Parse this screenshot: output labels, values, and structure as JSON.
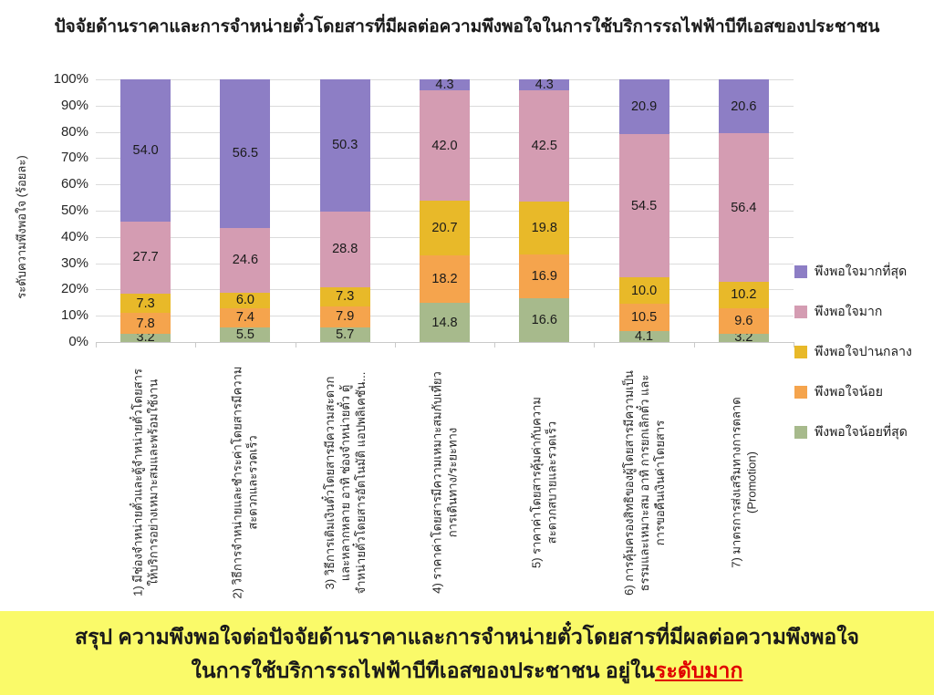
{
  "chart_data": {
    "type": "bar",
    "stacked": true,
    "orientation": "vertical",
    "grid": true,
    "legend_position": "right",
    "title": "ปัจจัยด้านราคาและการจำหน่ายตั๋วโดยสารที่มีผลต่อความพึงพอใจในการใช้บริการรถไฟฟ้าบีทีเอสของประชาชน",
    "y_axis_label": "ระดับความพึงพอใจ (ร้อยละ)",
    "ylim": [
      0,
      100
    ],
    "y_ticks": [
      "0%",
      "10%",
      "20%",
      "30%",
      "40%",
      "50%",
      "60%",
      "70%",
      "80%",
      "90%",
      "100%"
    ],
    "categories": [
      {
        "lines": [
          "1) มีช่องจำหน่ายตั๋วและตู้จำหน่ายตั๋วโดยสาร",
          "ให้บริการอย่างเหมาะสมและพร้อมใช้งาน"
        ]
      },
      {
        "lines": [
          "2) วิธีการจำหน่ายและชำระค่าโดยสารมีความ",
          "สะดวกและรวดเร็ว"
        ]
      },
      {
        "lines": [
          "3) วิธีการเติมเงินตั๋วโดยสารมีความสะดวก",
          "และหลากหลาย อาทิ ช่องจำหน่ายตั๋ว ตู้",
          "จำหน่ายตั๋วโดยสารอัตโนมัติ แอปพลิเคชัน..."
        ]
      },
      {
        "lines": [
          "4) ราคาค่าโดยสารมีความเหมาะสมกับเที่ยว",
          "การเดินทาง/ระยะทาง"
        ]
      },
      {
        "lines": [
          "5) ราคาค่าโดยสารคุ้มค่ากับความ",
          "สะดวกสบายและรวดเร็ว"
        ]
      },
      {
        "lines": [
          "6) การคุ้มครองสิทธิของผู้โดยสารมีความเป็น",
          "ธรรมและเหมาะสม อาทิ การยกเลิกตั๋ว และ",
          "การขอคืนเงินค่าโดยสาร"
        ]
      },
      {
        "lines": [
          "7) มาตรการส่งเสริมทางการตลาด",
          "(Promotion)"
        ]
      }
    ],
    "series": [
      {
        "name": "พึงพอใจมากที่สุด",
        "color": "#8D7EC5",
        "values": [
          54.0,
          56.5,
          50.3,
          4.3,
          4.3,
          20.9,
          20.6
        ]
      },
      {
        "name": "พึงพอใจมาก",
        "color": "#D49CB2",
        "values": [
          27.7,
          24.6,
          28.8,
          42.0,
          42.5,
          54.5,
          56.4
        ]
      },
      {
        "name": "พึงพอใจปานกลาง",
        "color": "#E8B929",
        "values": [
          7.3,
          6.0,
          7.3,
          20.7,
          19.8,
          10.0,
          10.2
        ]
      },
      {
        "name": "พึงพอใจน้อย",
        "color": "#F5A44D",
        "values": [
          7.8,
          7.4,
          7.9,
          18.2,
          16.9,
          10.5,
          9.6
        ]
      },
      {
        "name": "พึงพอใจน้อยที่สุด",
        "color": "#A7BA8C",
        "values": [
          3.2,
          5.5,
          5.7,
          14.8,
          16.6,
          4.1,
          3.2
        ]
      }
    ],
    "gridline_color": "#dbdbdb"
  },
  "banner": {
    "line1": "สรุป ความพึงพอใจต่อปัจจัยด้านราคาและการจำหน่ายตั๋วโดยสารที่มีผลต่อความพึงพอใจ",
    "line2_prefix": "ในการใช้บริการรถไฟฟ้าบีทีเอสของประชาชน อยู่ใน",
    "line2_highlight": "ระดับมาก",
    "background": "#FAFA69",
    "highlight_color": "#E00000",
    "text_color": "#1a1a1a"
  }
}
